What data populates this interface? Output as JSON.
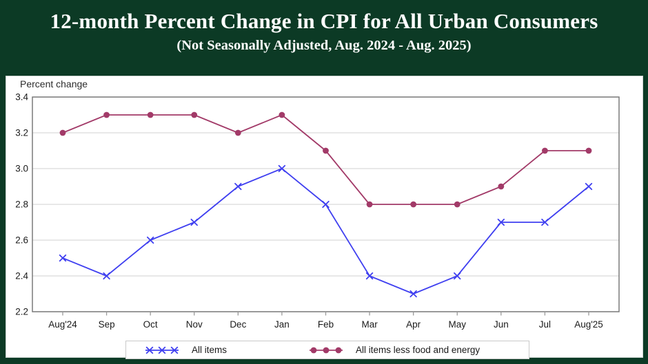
{
  "header": {
    "title": "12-month Percent Change in CPI for All Urban Consumers",
    "subtitle": "(Not Seasonally Adjusted, Aug. 2024 - Aug. 2025)"
  },
  "colors": {
    "background": "#0c3a25",
    "panel": "#ffffff",
    "frame": "#7a7a7a",
    "gridline": "#d9d9d9",
    "tick": "#999999",
    "text": "#1a1a1a"
  },
  "chart_data": {
    "type": "line",
    "categories": [
      "Aug'24",
      "Sep",
      "Oct",
      "Nov",
      "Dec",
      "Jan",
      "Feb",
      "Mar",
      "Apr",
      "May",
      "Jun",
      "Jul",
      "Aug'25"
    ],
    "series": [
      {
        "name": "All items",
        "marker": "x",
        "color": "#3f3ff0",
        "values": [
          2.5,
          2.4,
          2.6,
          2.7,
          2.9,
          3.0,
          2.8,
          2.4,
          2.3,
          2.4,
          2.7,
          2.7,
          2.9
        ]
      },
      {
        "name": "All items less food and energy",
        "marker": "circle",
        "color": "#a23a68",
        "values": [
          3.2,
          3.3,
          3.3,
          3.3,
          3.2,
          3.3,
          3.1,
          2.8,
          2.8,
          2.8,
          2.9,
          3.1,
          3.1
        ]
      }
    ],
    "ylabel": "Percent change",
    "ylim": [
      2.2,
      3.4
    ],
    "ytick_step": 0.2,
    "grid": true,
    "legend_position": "bottom"
  }
}
